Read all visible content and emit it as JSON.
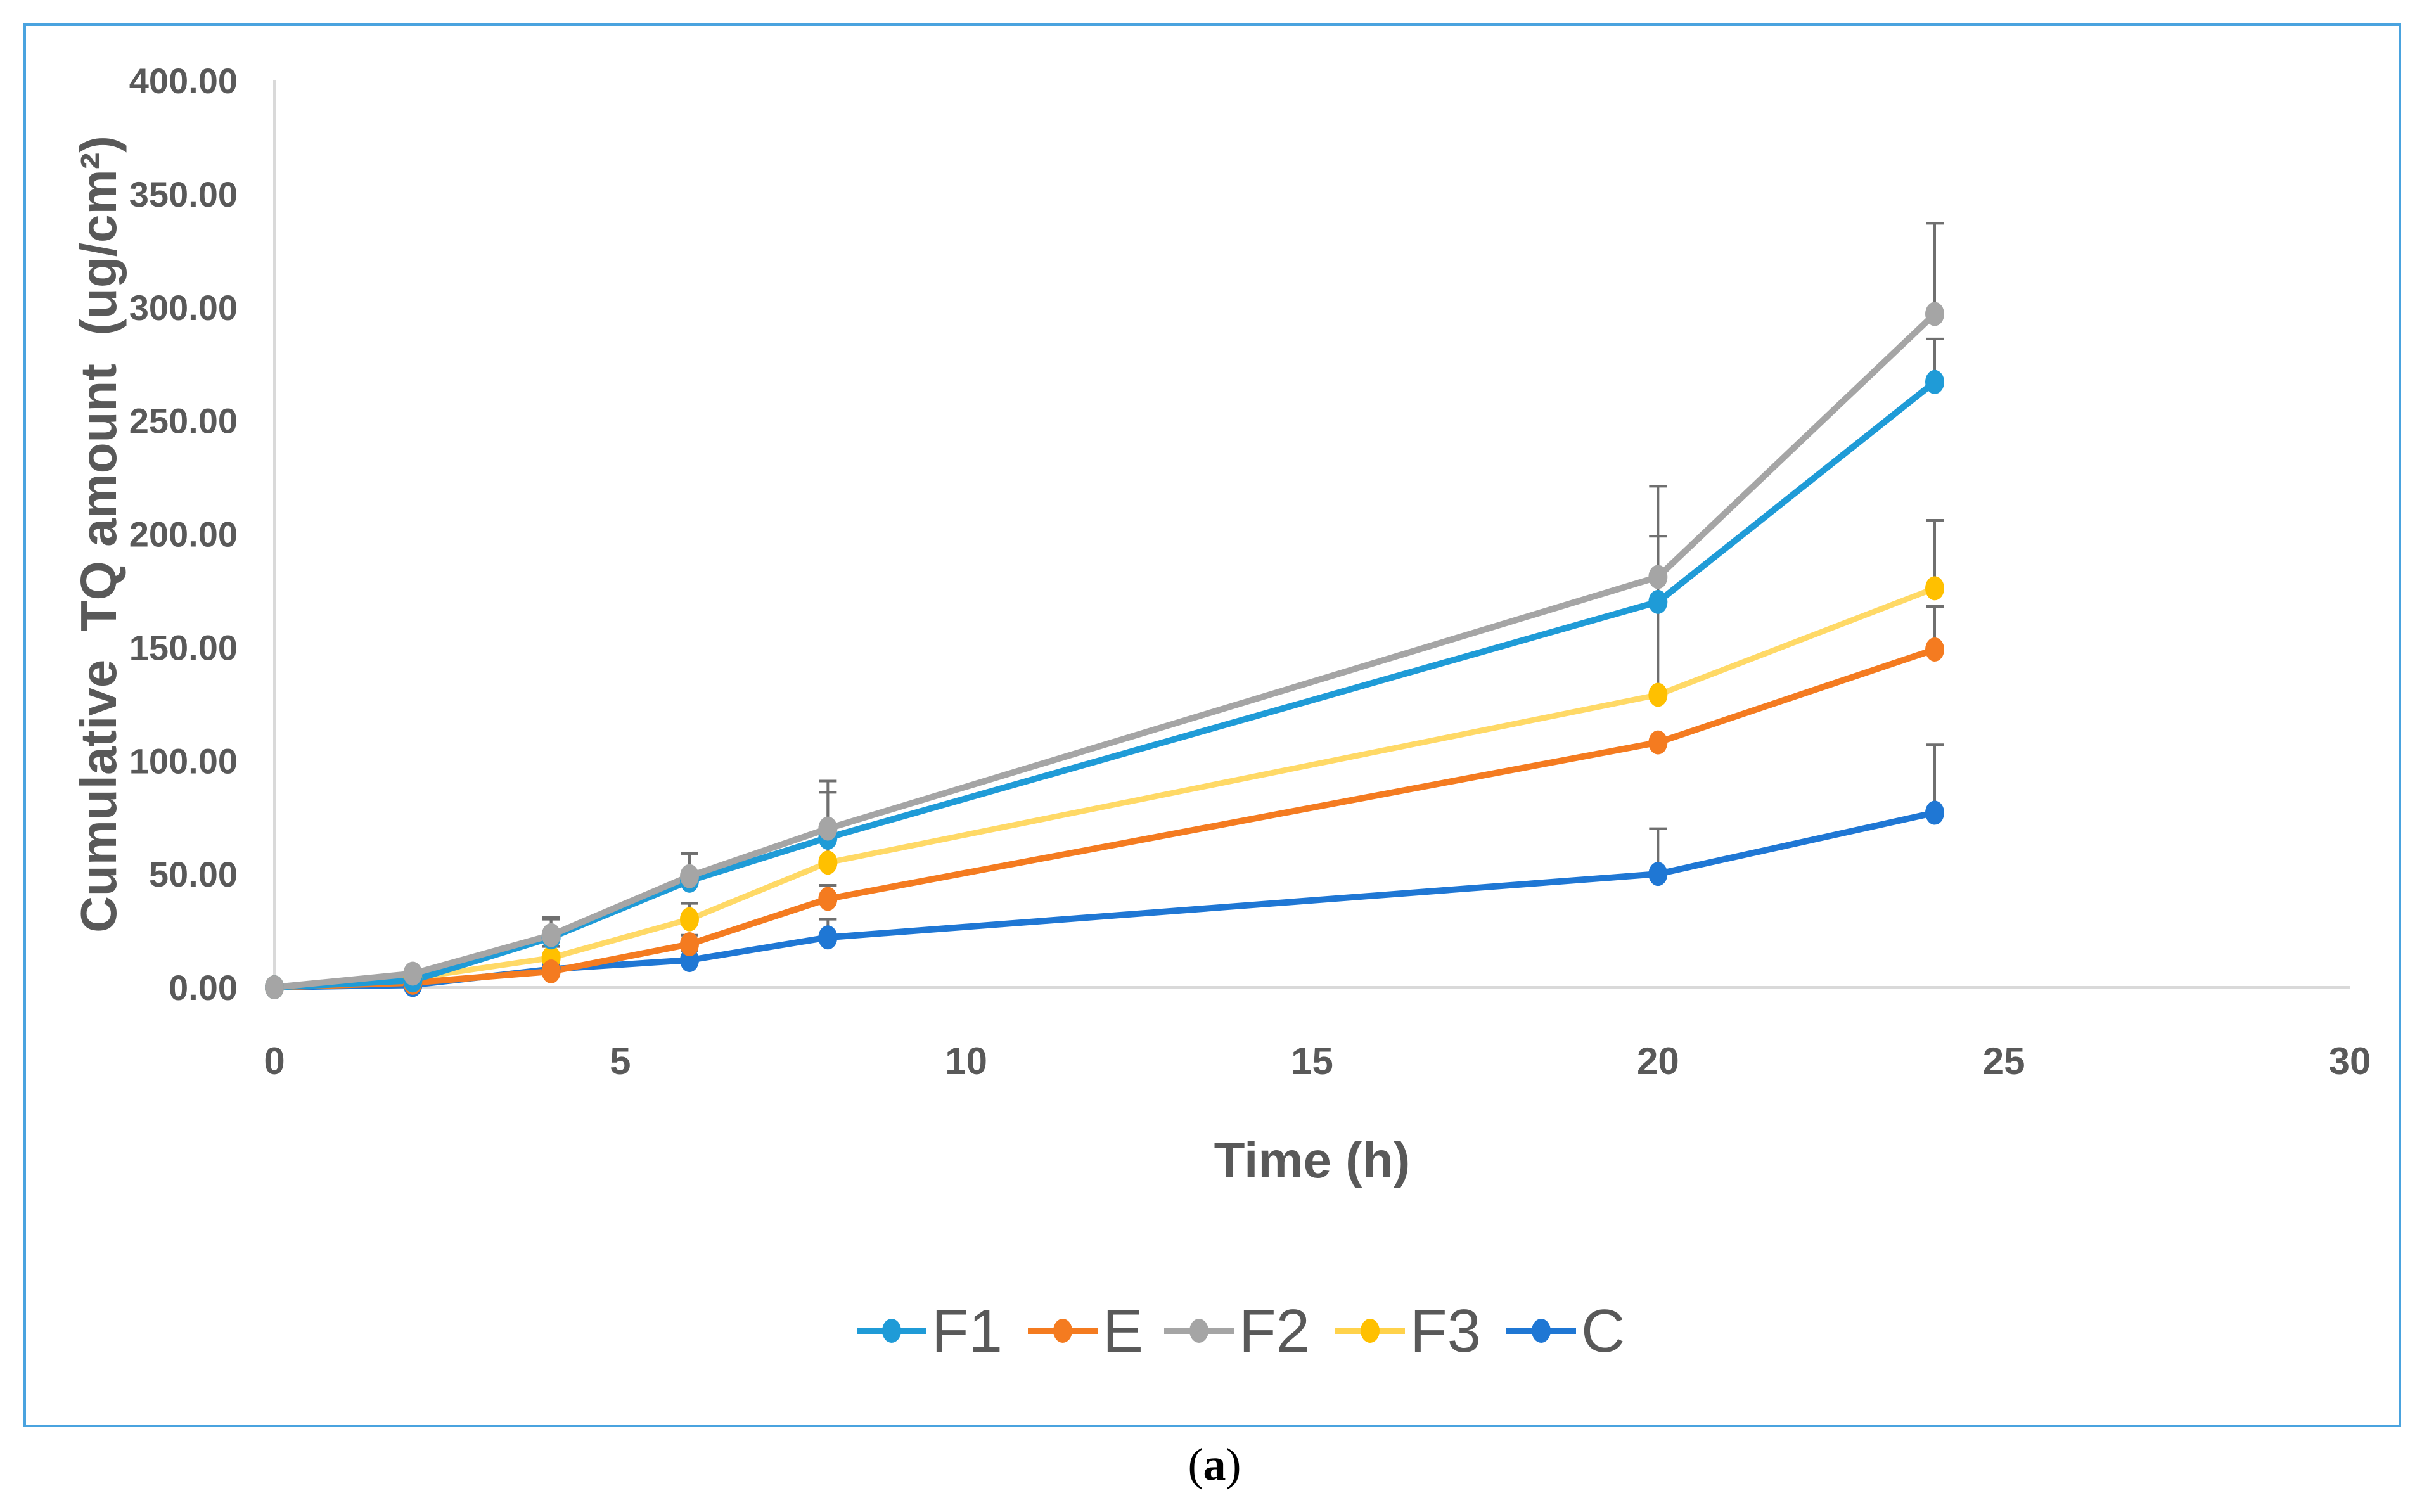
{
  "chart_data": {
    "type": "line",
    "title": "",
    "xlabel": "Time (h)",
    "ylabel": "Cumulative  TQ amount  (ug/cm²)",
    "xlim": [
      0,
      30
    ],
    "ylim": [
      0,
      400
    ],
    "x_ticks": [
      "0",
      "5",
      "10",
      "15",
      "20",
      "25",
      "30"
    ],
    "y_ticks": [
      "0.00",
      "50.00",
      "100.00",
      "150.00",
      "200.00",
      "250.00",
      "300.00",
      "350.00",
      "400.00"
    ],
    "grid": false,
    "legend_position": "bottom",
    "x": [
      0,
      2,
      4,
      6,
      8,
      20,
      24
    ],
    "series": [
      {
        "name": "F1",
        "color": "#1f9bd7",
        "values": [
          0,
          3,
          22,
          47,
          66,
          170,
          267
        ],
        "errors": [
          0,
          2,
          8,
          12,
          20,
          29,
          19
        ]
      },
      {
        "name": "E",
        "color": "#f47b20",
        "values": [
          0,
          2,
          7,
          19,
          39,
          108,
          149
        ],
        "errors": [
          0,
          1,
          2,
          4,
          6,
          0,
          19
        ]
      },
      {
        "name": "F2",
        "color": "#a5a5a5",
        "values": [
          0,
          6,
          23,
          49,
          70,
          181,
          297
        ],
        "errors": [
          0,
          2,
          8,
          10,
          21,
          40,
          40
        ]
      },
      {
        "name": "F3",
        "color": "#ffc000",
        "values": [
          0,
          4,
          13,
          30,
          55,
          129,
          176
        ],
        "errors": [
          0,
          2,
          5,
          7,
          14,
          70,
          30
        ]
      },
      {
        "name": "C",
        "color": "#1f77d4",
        "values": [
          0,
          1,
          8,
          12,
          22,
          50,
          77
        ],
        "errors": [
          0,
          1,
          2,
          4,
          8,
          20,
          30
        ]
      }
    ]
  },
  "caption": {
    "open": "(",
    "label": "a",
    "close": ")"
  }
}
